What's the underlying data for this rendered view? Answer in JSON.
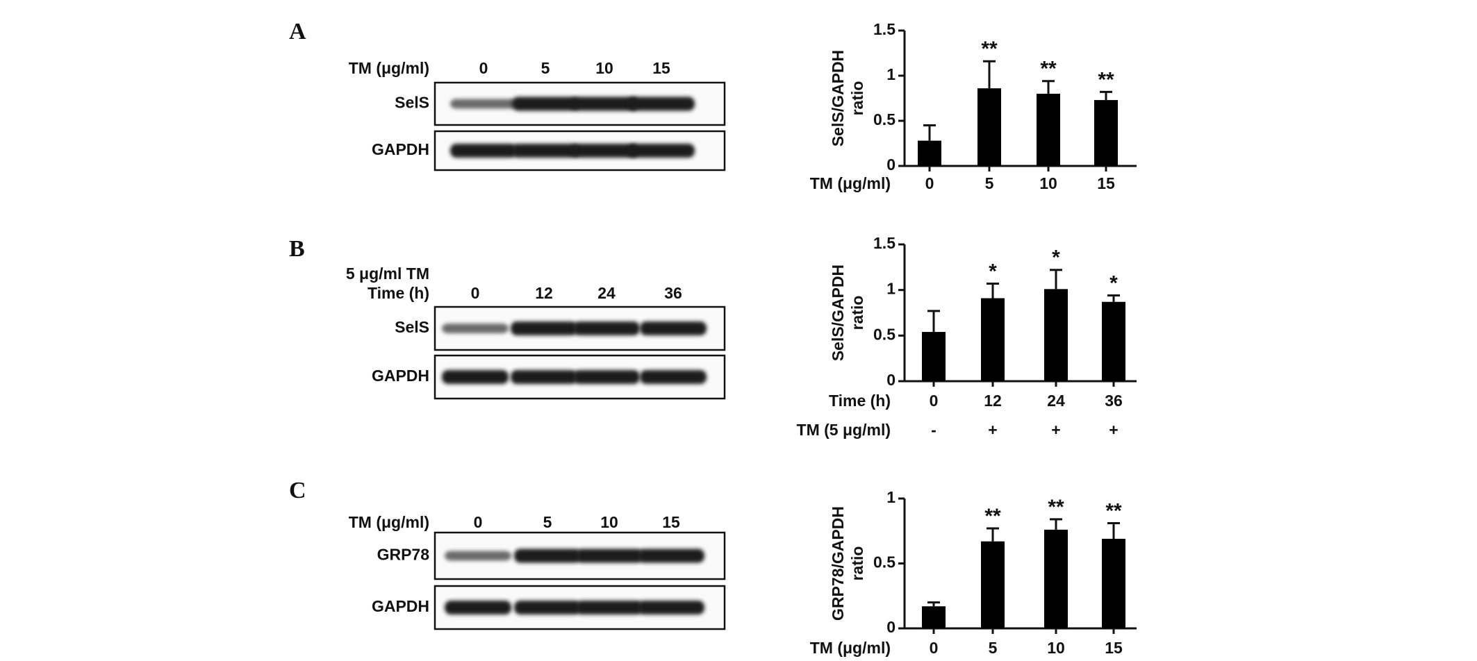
{
  "panels": [
    "A",
    "B",
    "C"
  ],
  "blots": [
    {
      "header": [
        "TM (μg/ml)"
      ],
      "lanes": [
        "0",
        "5",
        "10",
        "15"
      ],
      "rows": [
        "SelS",
        "GAPDH"
      ]
    },
    {
      "header": [
        "5 μg/ml TM",
        "Time (h)"
      ],
      "lanes": [
        "0",
        "12",
        "24",
        "36"
      ],
      "rows": [
        "SelS",
        "GAPDH"
      ]
    },
    {
      "header": [
        "TM (μg/ml)"
      ],
      "lanes": [
        "0",
        "5",
        "10",
        "15"
      ],
      "rows": [
        "GRP78",
        "GAPDH"
      ]
    }
  ],
  "chart_data": [
    {
      "type": "bar",
      "ylabel": [
        "SelS/GAPDH",
        "ratio"
      ],
      "xlabel": "TM (μg/ml)",
      "categories": [
        "0",
        "5",
        "10",
        "15"
      ],
      "values": [
        0.28,
        0.86,
        0.8,
        0.73
      ],
      "errors": [
        0.17,
        0.3,
        0.14,
        0.09
      ],
      "annotations": [
        null,
        "**",
        "**",
        "**"
      ],
      "color": "#000000",
      "ylim": [
        0,
        1.5
      ],
      "yticks": [
        0,
        0.5,
        1,
        1.5
      ]
    },
    {
      "type": "bar",
      "ylabel": [
        "SelS/GAPDH",
        "ratio"
      ],
      "xlabel": "Time (h)",
      "categories": [
        "0",
        "12",
        "24",
        "36"
      ],
      "xlabel2": "TM (5 μg/ml)",
      "categories2": [
        "-",
        "+",
        "+",
        "+"
      ],
      "values": [
        0.54,
        0.91,
        1.01,
        0.87
      ],
      "errors": [
        0.23,
        0.16,
        0.21,
        0.07
      ],
      "annotations": [
        null,
        "*",
        "*",
        "*"
      ],
      "color": "#000000",
      "ylim": [
        0,
        1.5
      ],
      "yticks": [
        0,
        0.5,
        1,
        1.5
      ]
    },
    {
      "type": "bar",
      "ylabel": [
        "GRP78/GAPDH",
        "ratio"
      ],
      "xlabel": "TM (μg/ml)",
      "categories": [
        "0",
        "5",
        "10",
        "15"
      ],
      "values": [
        0.17,
        0.67,
        0.76,
        0.69
      ],
      "errors": [
        0.03,
        0.1,
        0.08,
        0.12
      ],
      "annotations": [
        null,
        "**",
        "**",
        "**"
      ],
      "color": "#000000",
      "ylim": [
        0,
        1
      ],
      "yticks": [
        0,
        0.5,
        1
      ]
    }
  ]
}
